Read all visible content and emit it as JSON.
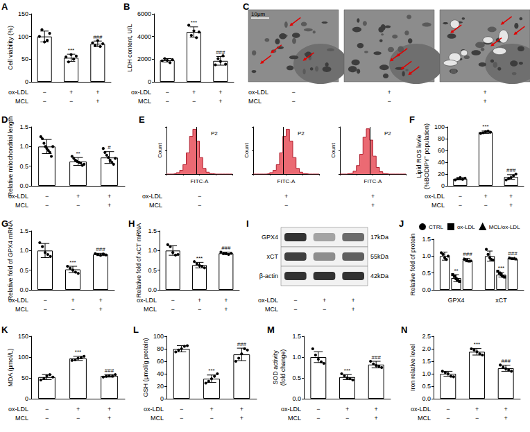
{
  "chart_data": [
    {
      "panel": "A",
      "type": "bar",
      "ylabel": "Cell viability (%)",
      "categories": [
        null,
        null,
        null
      ],
      "x_rows": [
        {
          "label": "ox-LDL",
          "values": [
            "−",
            "+",
            "+"
          ]
        },
        {
          "label": "MCL",
          "values": [
            "−",
            "−",
            "+"
          ]
        }
      ],
      "values": [
        100,
        53,
        84
      ],
      "errors": [
        12,
        8,
        6
      ],
      "points": [
        [
          100,
          115,
          88,
          93,
          107
        ],
        [
          55,
          44,
          60,
          50,
          57
        ],
        [
          86,
          80,
          91,
          78,
          84
        ]
      ],
      "annotations": [
        null,
        "***",
        "###"
      ],
      "ylim": [
        0,
        150
      ],
      "yticks": [
        0,
        50,
        100,
        150
      ],
      "grid": false,
      "color": "#ffffff",
      "marker": "circle"
    },
    {
      "panel": "B",
      "type": "bar",
      "ylabel": "LDH content, U/L",
      "categories": [
        null,
        null,
        null
      ],
      "x_rows": [
        {
          "label": "ox-LDL",
          "values": [
            "−",
            "+",
            "+"
          ]
        },
        {
          "label": "MCL",
          "values": [
            "−",
            "−",
            "+"
          ]
        }
      ],
      "values": [
        1900,
        4400,
        1850
      ],
      "errors": [
        150,
        450,
        380
      ],
      "points": [
        [
          1850,
          2050,
          1900,
          1750,
          1950
        ],
        [
          5000,
          4100,
          4500,
          3900,
          4400
        ],
        [
          1500,
          2100,
          1800,
          2300,
          1550
        ]
      ],
      "annotations": [
        null,
        "***",
        "###"
      ],
      "ylim": [
        0,
        6000
      ],
      "yticks": [
        0,
        2000,
        4000,
        6000
      ],
      "grid": false,
      "color": "#ffffff",
      "marker": "circle"
    },
    {
      "panel": "C",
      "type": "micrograph",
      "scale_bar": "10μm",
      "x_rows": [
        {
          "label": "ox-LDL",
          "values": [
            "−",
            "+",
            "+"
          ]
        },
        {
          "label": "MCL",
          "values": [
            "−",
            "−",
            "+"
          ]
        }
      ]
    },
    {
      "panel": "D",
      "type": "bar",
      "ylabel": "Relative mitochondrial length",
      "categories": [
        null,
        null,
        null
      ],
      "x_rows": [
        {
          "label": "ox-LDL",
          "values": [
            "−",
            "+",
            "+"
          ]
        },
        {
          "label": "MCL",
          "values": [
            "−",
            "−",
            "+"
          ]
        }
      ],
      "values": [
        1.0,
        0.62,
        0.72
      ],
      "errors": [
        0.18,
        0.1,
        0.15
      ],
      "points": [
        [
          1.25,
          1.2,
          1.1,
          1.0,
          0.95,
          0.9,
          0.85,
          0.75,
          1.0
        ],
        [
          0.75,
          0.7,
          0.65,
          0.62,
          0.6,
          0.58,
          0.52,
          0.55
        ],
        [
          0.95,
          0.85,
          0.78,
          0.72,
          0.65,
          0.6,
          0.55,
          0.7
        ]
      ],
      "annotations": [
        null,
        "**",
        "#"
      ],
      "ylim": [
        0,
        1.5
      ],
      "yticks": [
        {
          "value": 0,
          "label": "0.0"
        },
        0.5,
        {
          "value": 1,
          "label": "1.0"
        },
        1.5
      ],
      "grid": false,
      "color": "#ffffff",
      "marker": "circle"
    },
    {
      "panel": "E",
      "type": "histogram",
      "xlabel": "FITC-A",
      "ylabel": "Count",
      "bins": [
        0,
        5,
        10,
        15,
        20,
        25,
        30,
        35,
        40,
        45,
        50,
        55,
        60,
        65,
        70,
        75,
        80,
        85,
        90,
        95,
        100
      ],
      "series": [
        {
          "values": [
            0,
            0,
            1,
            3,
            8,
            20,
            45,
            80,
            95,
            70,
            35,
            12,
            4,
            1,
            0,
            0,
            0,
            0,
            0,
            0
          ]
        },
        {
          "values": [
            0,
            0,
            0,
            0,
            1,
            3,
            8,
            20,
            45,
            80,
            95,
            70,
            35,
            12,
            4,
            1,
            0,
            0,
            0,
            0
          ]
        },
        {
          "values": [
            0,
            0,
            1,
            2,
            6,
            18,
            42,
            78,
            96,
            72,
            38,
            14,
            5,
            1,
            0,
            0,
            0,
            0,
            0,
            0
          ]
        }
      ],
      "gate": {
        "label": "P2",
        "range": [
          45,
          100
        ]
      },
      "xlim": [
        0,
        100
      ],
      "xticks": [
        0,
        25,
        50,
        75,
        100
      ],
      "ylim": [
        0,
        100
      ],
      "yticks": [
        0,
        50,
        100
      ],
      "tick_labels": false,
      "color": "#e8505b",
      "x_rows": [
        {
          "label": "ox-LDL",
          "values": [
            "−",
            "+",
            "+"
          ]
        },
        {
          "label": "MCL",
          "values": [
            "−",
            "−",
            "+"
          ]
        }
      ]
    },
    {
      "panel": "F",
      "type": "bar",
      "ylabel": "Lipid ROS levle\n(%BODIPY⁺ population)",
      "categories": [
        null,
        null,
        null
      ],
      "x_rows": [
        {
          "label": "ox-LDL",
          "values": [
            "−",
            "+",
            "+"
          ]
        },
        {
          "label": "MCL",
          "values": [
            "−",
            "−",
            "+"
          ]
        }
      ],
      "values": [
        12,
        91,
        15
      ],
      "errors": [
        2,
        2,
        4
      ],
      "points": [
        [
          10,
          12,
          14,
          11,
          13
        ],
        [
          89,
          90,
          92,
          93,
          91
        ],
        [
          10,
          12,
          14,
          17,
          20
        ]
      ],
      "annotations": [
        null,
        "***",
        "###"
      ],
      "ylim": [
        0,
        100
      ],
      "yticks": [
        0,
        20,
        40,
        60,
        80,
        100
      ],
      "grid": false,
      "color": "#ffffff",
      "marker": "circle"
    },
    {
      "panel": "G",
      "type": "bar",
      "ylabel": "Relative fold of GPX4 mRNA",
      "categories": [
        null,
        null,
        null
      ],
      "x_rows": [
        {
          "label": "ox-LDL",
          "values": [
            "−",
            "+",
            "+"
          ]
        },
        {
          "label": "MCL",
          "values": [
            "−",
            "−",
            "+"
          ]
        }
      ],
      "values": [
        1.0,
        0.52,
        0.9
      ],
      "errors": [
        0.18,
        0.08,
        0.03
      ],
      "points": [
        [
          1.2,
          1.1,
          0.95,
          0.9,
          0.85
        ],
        [
          0.6,
          0.55,
          0.5,
          0.45,
          0.42
        ],
        [
          0.92,
          0.9,
          0.88,
          0.91,
          0.89
        ]
      ],
      "annotations": [
        null,
        "***",
        "###"
      ],
      "ylim": [
        0,
        1.5
      ],
      "yticks": [
        {
          "value": 0,
          "label": "0.0"
        },
        0.5,
        {
          "value": 1,
          "label": "1.0"
        },
        1.5
      ],
      "grid": false,
      "color": "#ffffff",
      "marker": "circle"
    },
    {
      "panel": "H",
      "type": "bar",
      "ylabel": "Relative fold of xCT mRNA",
      "categories": [
        null,
        null,
        null
      ],
      "x_rows": [
        {
          "label": "ox-LDL",
          "values": [
            "−",
            "+",
            "+"
          ]
        },
        {
          "label": "MCL",
          "values": [
            "−",
            "−",
            "+"
          ]
        }
      ],
      "values": [
        1.0,
        0.63,
        0.93
      ],
      "errors": [
        0.12,
        0.07,
        0.03
      ],
      "points": [
        [
          1.15,
          1.1,
          0.95,
          0.9,
          0.9
        ],
        [
          0.72,
          0.66,
          0.62,
          0.6,
          0.56
        ],
        [
          0.96,
          0.94,
          0.92,
          0.9,
          0.93
        ]
      ],
      "annotations": [
        null,
        "***",
        "###"
      ],
      "ylim": [
        0,
        1.5
      ],
      "yticks": [
        {
          "value": 0,
          "label": "0.0"
        },
        0.5,
        {
          "value": 1,
          "label": "1.0"
        },
        1.5
      ],
      "grid": false,
      "color": "#ffffff",
      "marker": "circle"
    },
    {
      "panel": "I",
      "type": "blot",
      "rows": [
        {
          "label": "GPX4",
          "size": "17kDa",
          "intensity": [
            0.85,
            0.35,
            0.6
          ]
        },
        {
          "label": "xCT",
          "size": "55kDa",
          "intensity": [
            0.8,
            0.45,
            0.65
          ]
        },
        {
          "label": "β-actin",
          "size": "42kDa",
          "intensity": [
            0.85,
            0.85,
            0.85
          ]
        }
      ],
      "x_rows": [
        {
          "label": "ox-LDL",
          "values": [
            "−",
            "+",
            "+"
          ]
        },
        {
          "label": "MCL",
          "values": [
            "−",
            "−",
            "+"
          ]
        }
      ]
    },
    {
      "panel": "J",
      "type": "bar",
      "ylabel": "Relative fold of protein",
      "categories": [
        "GPX4",
        "xCT"
      ],
      "series": [
        {
          "name": "CTRL",
          "marker": "circle",
          "values": [
            1.0,
            1.0
          ],
          "errors": [
            0.12,
            0.15
          ],
          "points": [
            [
              1.1,
              1.05,
              0.95,
              0.9,
              1.0
            ],
            [
              1.2,
              1.05,
              0.95,
              0.9,
              0.88
            ]
          ],
          "annotations": [
            null,
            null
          ]
        },
        {
          "name": "ox-LDL",
          "marker": "square",
          "values": [
            0.35,
            0.45
          ],
          "errors": [
            0.1,
            0.07
          ],
          "points": [
            [
              0.45,
              0.4,
              0.33,
              0.28,
              0.25
            ],
            [
              0.55,
              0.5,
              0.45,
              0.4,
              0.38
            ]
          ],
          "annotations": [
            "**",
            "***"
          ]
        },
        {
          "name": "MCL/ox-LDL",
          "marker": "triangle",
          "values": [
            0.88,
            0.93
          ],
          "errors": [
            0.05,
            0.02
          ],
          "points": [
            [
              0.92,
              0.9,
              0.88,
              0.85,
              0.86
            ],
            [
              0.95,
              0.94,
              0.92,
              0.93,
              0.91
            ]
          ],
          "annotations": [
            "###",
            "###"
          ]
        }
      ],
      "legend": "top",
      "ylim": [
        0,
        1.5
      ],
      "yticks": [
        {
          "value": 0,
          "label": "0.0"
        },
        0.5,
        {
          "value": 1,
          "label": "1.0"
        },
        1.5
      ],
      "grid": false,
      "color": "#ffffff"
    },
    {
      "panel": "K",
      "type": "bar",
      "ylabel": "MDA (μmol/L)",
      "categories": [
        null,
        null,
        null
      ],
      "x_rows": [
        {
          "label": "ox-LDL",
          "values": [
            "−",
            "+",
            "+"
          ]
        },
        {
          "label": "MCL",
          "values": [
            "−",
            "−",
            "+"
          ]
        }
      ],
      "values": [
        52,
        97,
        55
      ],
      "errors": [
        6,
        5,
        3
      ],
      "points": [
        [
          45,
          50,
          55,
          58,
          52
        ],
        [
          92,
          95,
          97,
          100,
          102
        ],
        [
          52,
          54,
          55,
          56,
          58
        ]
      ],
      "annotations": [
        null,
        "***",
        "###"
      ],
      "ylim": [
        0,
        150
      ],
      "yticks": [
        0,
        50,
        100,
        150
      ],
      "grid": false,
      "color": "#ffffff",
      "marker": "circle"
    },
    {
      "panel": "L",
      "type": "bar",
      "ylabel": "GSH (μmol/g protein)",
      "categories": [
        null,
        null,
        null
      ],
      "x_rows": [
        {
          "label": "ox-LDL",
          "values": [
            "−",
            "+",
            "+"
          ]
        },
        {
          "label": "MCL",
          "values": [
            "−",
            "−",
            "+"
          ]
        }
      ],
      "values": [
        80,
        32,
        71
      ],
      "errors": [
        5,
        6,
        10
      ],
      "points": [
        [
          75,
          78,
          80,
          84,
          85
        ],
        [
          25,
          28,
          32,
          36,
          40
        ],
        [
          60,
          65,
          72,
          80,
          78
        ]
      ],
      "annotations": [
        null,
        "***",
        "###"
      ],
      "ylim": [
        0,
        100
      ],
      "yticks": [
        0,
        20,
        40,
        60,
        80,
        100
      ],
      "grid": false,
      "color": "#ffffff",
      "marker": "circle"
    },
    {
      "panel": "M",
      "type": "bar",
      "ylabel": "SOD activity\n(fold change)",
      "categories": [
        null,
        null,
        null
      ],
      "x_rows": [
        {
          "label": "ox-LDL",
          "values": [
            "−",
            "+",
            "+"
          ]
        },
        {
          "label": "MCL",
          "values": [
            "−",
            "−",
            "+"
          ]
        }
      ],
      "values": [
        1.0,
        0.52,
        0.82
      ],
      "errors": [
        0.13,
        0.06,
        0.08
      ],
      "points": [
        [
          1.2,
          1.05,
          0.95,
          0.9,
          0.85
        ],
        [
          0.6,
          0.55,
          0.5,
          0.48,
          0.45
        ],
        [
          0.9,
          0.85,
          0.8,
          0.78,
          0.75
        ]
      ],
      "annotations": [
        null,
        "***",
        "###"
      ],
      "ylim": [
        0,
        1.5
      ],
      "yticks": [
        {
          "value": 0,
          "label": "0.0"
        },
        0.5,
        {
          "value": 1,
          "label": "1.0"
        },
        1.5
      ],
      "grid": false,
      "color": "#ffffff",
      "marker": "circle"
    },
    {
      "panel": "N",
      "type": "bar",
      "ylabel": "Iron relative level",
      "categories": [
        null,
        null,
        null
      ],
      "x_rows": [
        {
          "label": "ox-LDL",
          "values": [
            "−",
            "+",
            "+"
          ]
        },
        {
          "label": "MCL",
          "values": [
            "−",
            "−",
            "+"
          ]
        }
      ],
      "values": [
        1.0,
        1.88,
        1.22
      ],
      "errors": [
        0.1,
        0.13,
        0.12
      ],
      "points": [
        [
          1.1,
          1.05,
          1.0,
          0.92,
          0.88
        ],
        [
          2.0,
          1.95,
          1.88,
          1.8,
          1.75
        ],
        [
          1.35,
          1.28,
          1.2,
          1.15,
          1.1
        ]
      ],
      "annotations": [
        null,
        "***",
        "###"
      ],
      "ylim": [
        0,
        2.5
      ],
      "yticks": [
        {
          "value": 0,
          "label": "0.0"
        },
        0.5,
        {
          "value": 1,
          "label": "1.0"
        },
        1.5,
        {
          "value": 2,
          "label": "2.0"
        },
        2.5
      ],
      "grid": false,
      "color": "#ffffff",
      "marker": "circle"
    }
  ]
}
